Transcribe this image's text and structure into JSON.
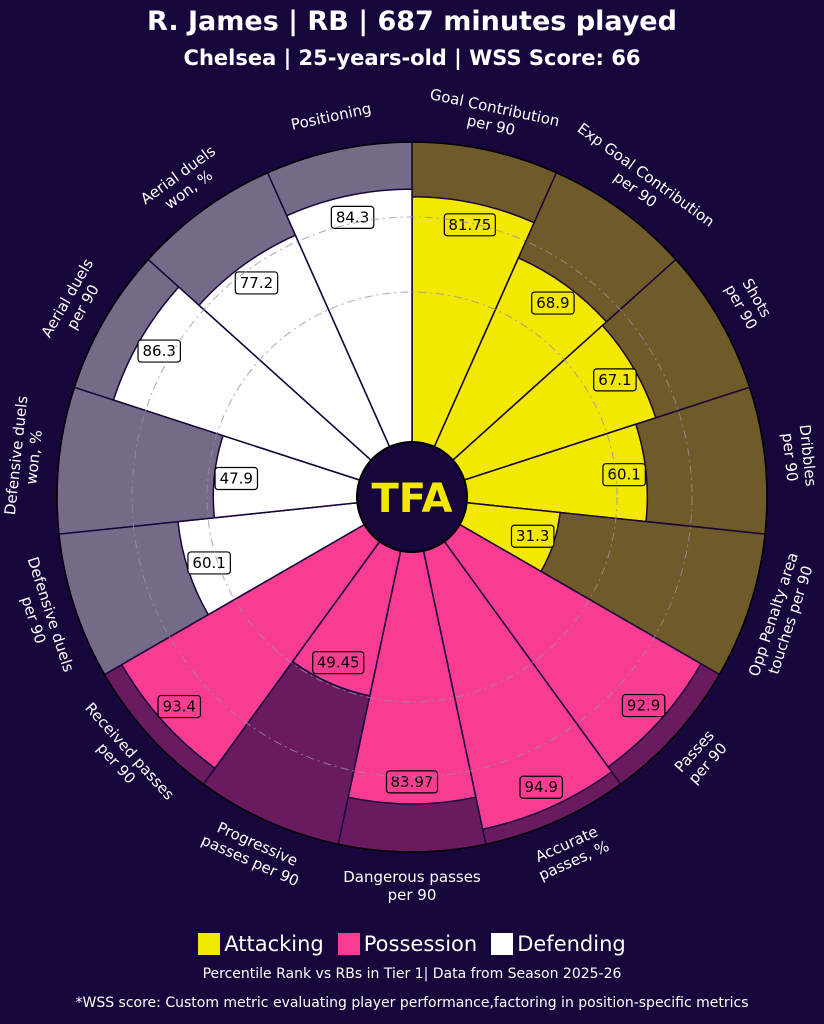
{
  "title": "R. James | RB | 687 minutes played",
  "subtitle": "Chelsea | 25-years-old | WSS Score: 66",
  "logo_text": "TFA",
  "colors": {
    "background": "#17063b",
    "attacking": "#f2e800",
    "possession": "#f73c92",
    "defending": "#ffffff",
    "attacking_bg": "#6f5a2a",
    "possession_bg": "#6a1a5e",
    "defending_bg": "#756a88"
  },
  "legend": [
    {
      "label": "Attacking",
      "color": "#f2e800"
    },
    {
      "label": "Possession",
      "color": "#f73c92"
    },
    {
      "label": "Defending",
      "color": "#ffffff"
    }
  ],
  "footnote1": "Percentile Rank vs RBs in Tier 1| Data from Season 2025-26",
  "footnote2": "*WSS score: Custom metric evaluating player performance,factoring in position-specific metrics",
  "chart_data": {
    "type": "radial-bar",
    "scale": [
      0,
      100
    ],
    "metrics": [
      {
        "label": [
          "Goal Contribution",
          "per 90"
        ],
        "value": 81.75,
        "category": "Attacking"
      },
      {
        "label": [
          "Exp Goal Contribution",
          "per 90"
        ],
        "value": 68.9,
        "category": "Attacking"
      },
      {
        "label": [
          "Shots",
          "per 90"
        ],
        "value": 67.1,
        "category": "Attacking"
      },
      {
        "label": [
          "Dribbles",
          "per 90"
        ],
        "value": 60.1,
        "category": "Attacking"
      },
      {
        "label": [
          "Opp Penalty area",
          "touches per 90"
        ],
        "value": 31.3,
        "category": "Attacking"
      },
      {
        "label": [
          "Passes",
          "per 90"
        ],
        "value": 92.9,
        "category": "Possession"
      },
      {
        "label": [
          "Accurate",
          "passes, %"
        ],
        "value": 94.9,
        "category": "Possession"
      },
      {
        "label": [
          "Dangerous passes",
          "per 90"
        ],
        "value": 83.97,
        "category": "Possession"
      },
      {
        "label": [
          "Progressive",
          "passes per 90"
        ],
        "value": 49.45,
        "category": "Possession"
      },
      {
        "label": [
          "Received passes",
          "per 90"
        ],
        "value": 93.4,
        "category": "Possession"
      },
      {
        "label": [
          "Defensive duels",
          "per 90"
        ],
        "value": 60.1,
        "category": "Defending"
      },
      {
        "label": [
          "Defensive duels",
          "won, %"
        ],
        "value": 47.9,
        "category": "Defending"
      },
      {
        "label": [
          "Aerial duels",
          "per 90"
        ],
        "value": 86.3,
        "category": "Defending"
      },
      {
        "label": [
          "Aerial duels",
          "won, %"
        ],
        "value": 77.2,
        "category": "Defending"
      },
      {
        "label": [
          "Positioning"
        ],
        "value": 84.3,
        "category": "Defending"
      }
    ]
  }
}
